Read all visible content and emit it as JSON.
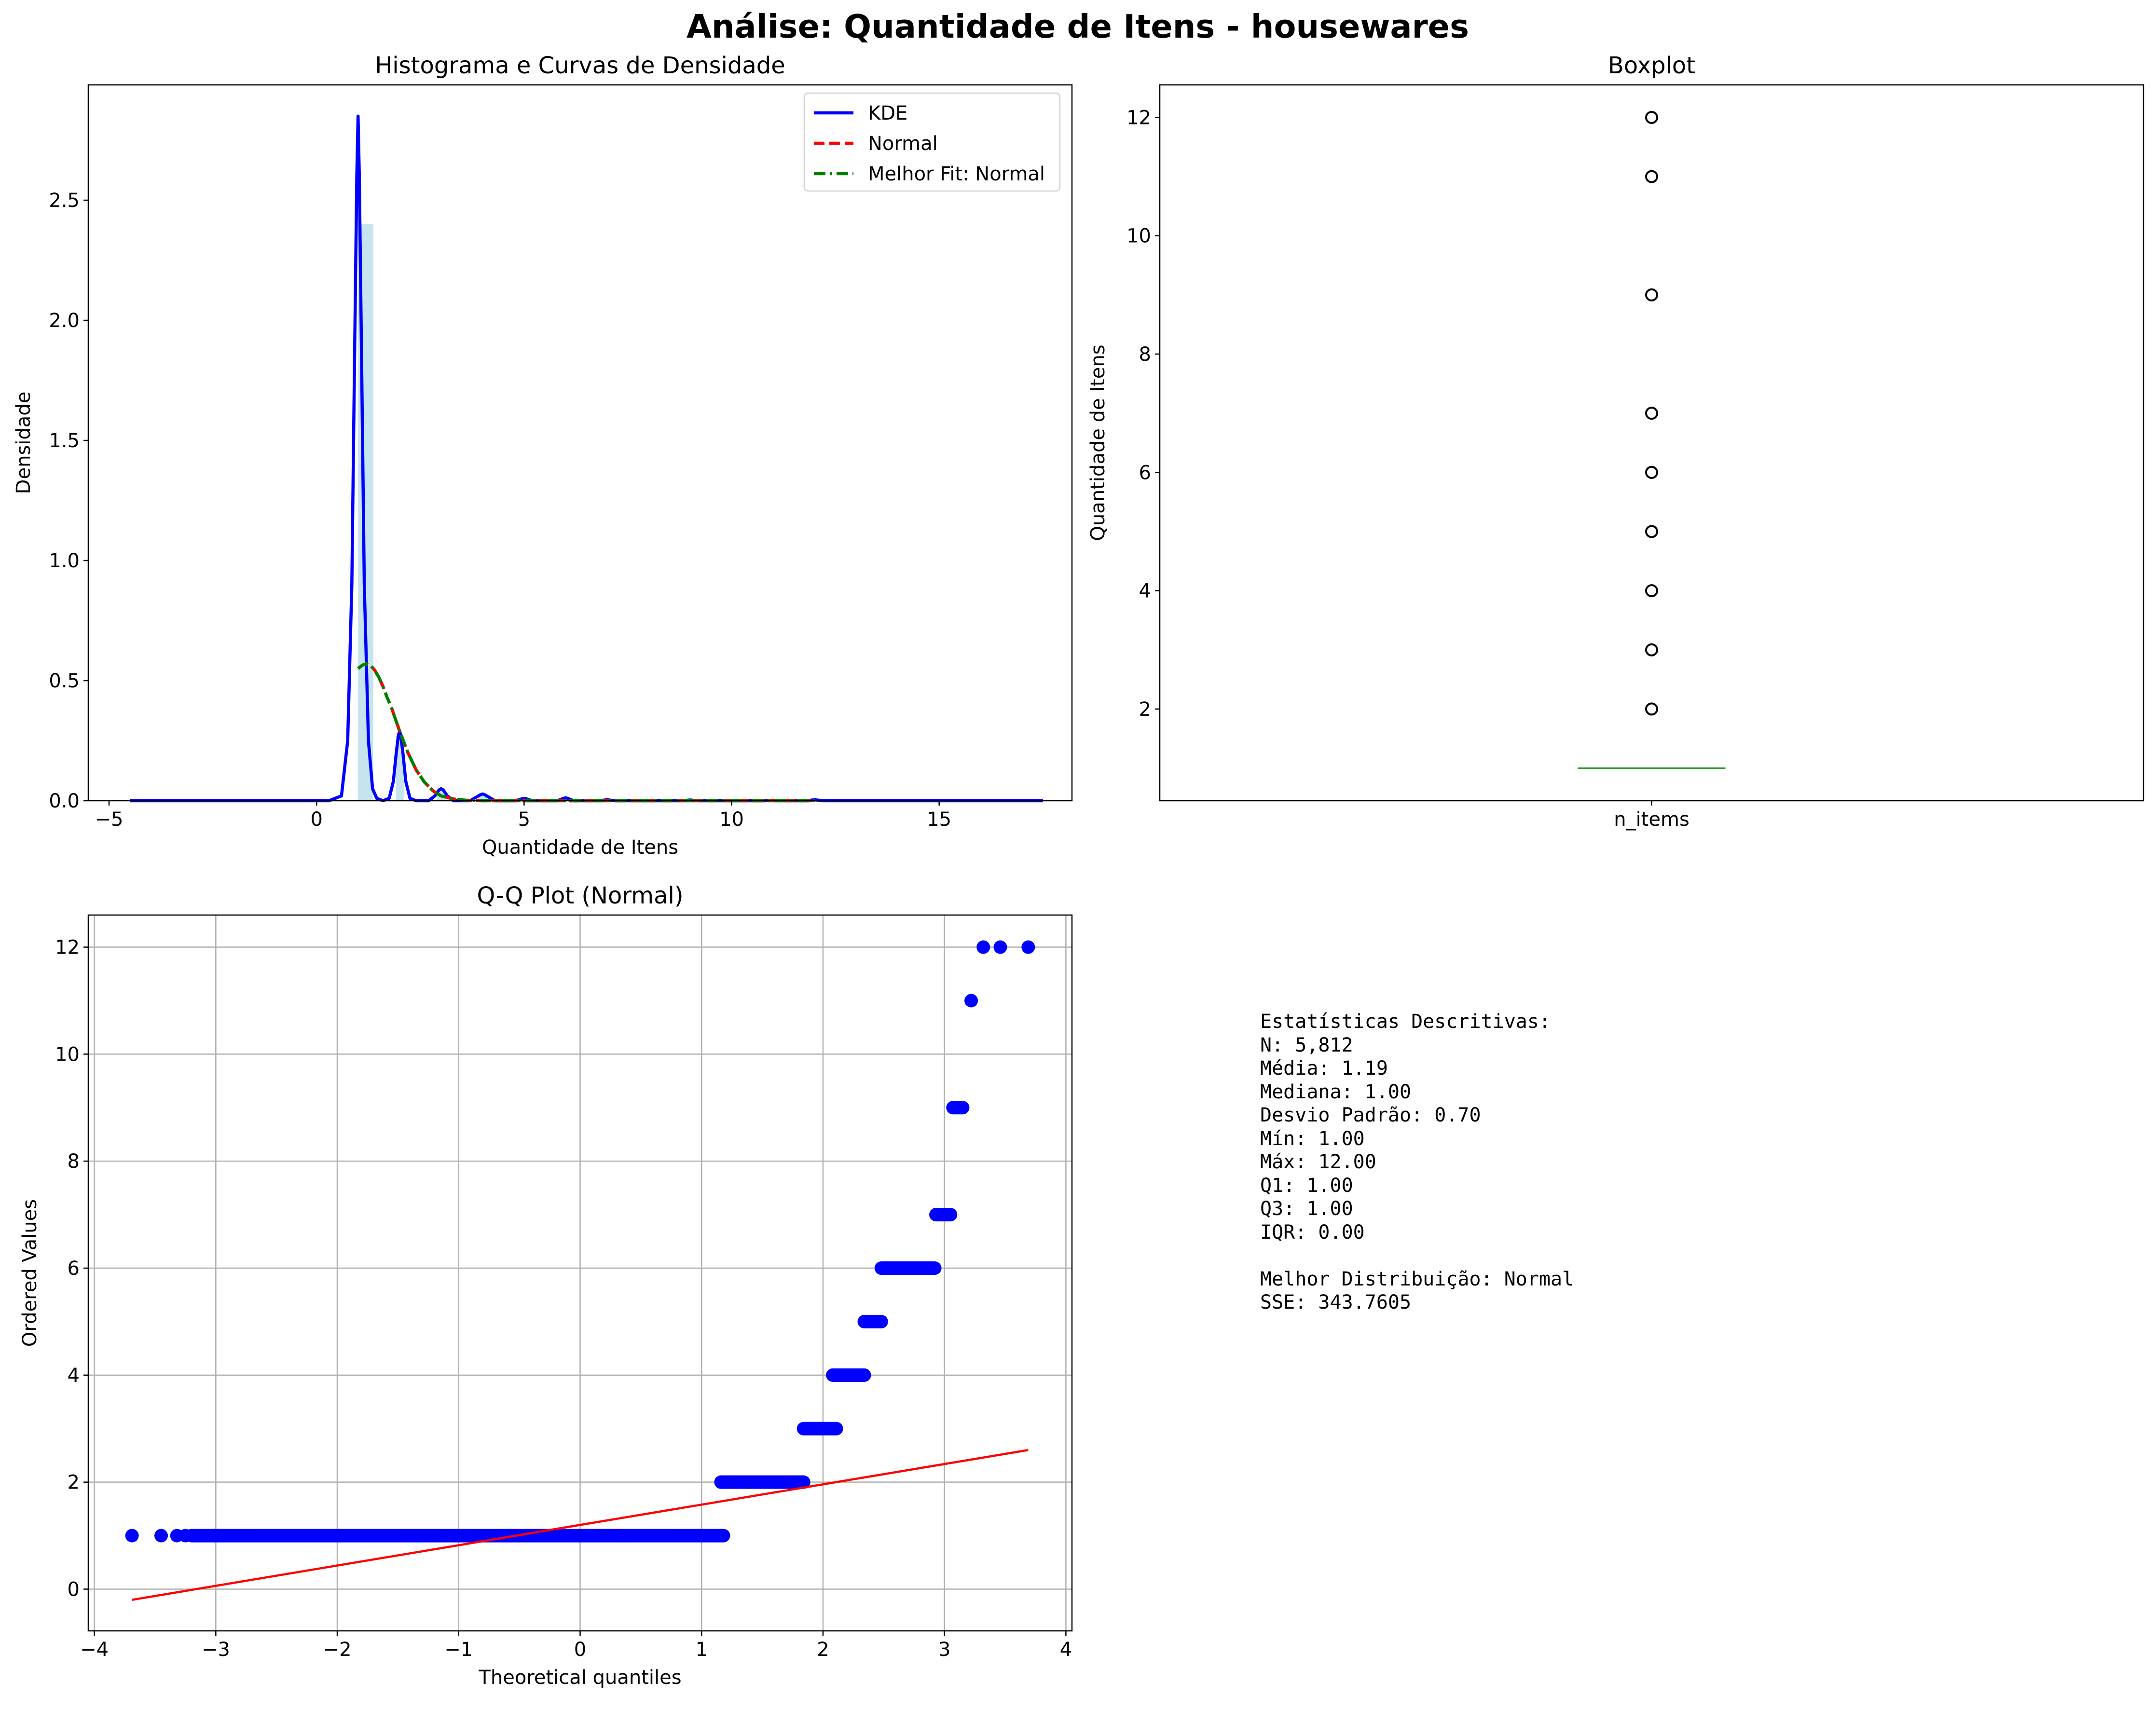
{
  "figure": {
    "suptitle": "Análise: Quantidade de Itens - housewares"
  },
  "chart_data": [
    {
      "type": "histogram+line",
      "title": "Histograma e Curvas de Densidade",
      "xlabel": "Quantidade de Itens",
      "ylabel": "Densidade",
      "xlim": [
        -5.5,
        18.2
      ],
      "ylim": [
        0,
        2.98
      ],
      "xticks": [
        -5,
        0,
        5,
        10,
        15
      ],
      "yticks": [
        0.0,
        0.5,
        1.0,
        1.5,
        2.0,
        2.5
      ],
      "xtick_labels": [
        "−5",
        "0",
        "5",
        "10",
        "15"
      ],
      "ytick_labels": [
        "0.0",
        "0.5",
        "1.0",
        "1.5",
        "2.0",
        "2.5"
      ],
      "grid": false,
      "legend_position": "upper-right",
      "histogram": {
        "color": "#add8e6",
        "bins": [
          {
            "x0": 1.0,
            "x1": 1.367,
            "density": 2.4
          },
          {
            "x0": 1.917,
            "x1": 2.1,
            "density": 0.27
          },
          {
            "x0": 2.9,
            "x1": 3.1,
            "density": 0.04
          },
          {
            "x0": 3.9,
            "x1": 4.1,
            "density": 0.02
          }
        ]
      },
      "series": [
        {
          "name": "KDE",
          "color": "#0000ff",
          "style": "solid",
          "x": [
            -4.5,
            -0.2,
            0.3,
            0.6,
            0.75,
            0.85,
            0.92,
            0.97,
            1.0,
            1.03,
            1.08,
            1.15,
            1.25,
            1.35,
            1.45,
            1.6,
            1.75,
            1.85,
            1.92,
            1.97,
            2.0,
            2.03,
            2.08,
            2.15,
            2.25,
            2.4,
            2.7,
            2.85,
            2.95,
            3.0,
            3.05,
            3.15,
            3.3,
            3.7,
            3.85,
            3.95,
            4.0,
            4.05,
            4.15,
            4.3,
            4.8,
            4.95,
            5.0,
            5.05,
            5.2,
            5.8,
            5.95,
            6.0,
            6.05,
            6.2,
            6.8,
            7.0,
            7.2,
            8.8,
            9.0,
            9.2,
            10.8,
            11.0,
            11.2,
            11.8,
            12.0,
            12.2,
            17.5
          ],
          "y": [
            0.0,
            0.0,
            0.0,
            0.02,
            0.25,
            0.9,
            1.9,
            2.6,
            2.85,
            2.6,
            1.9,
            0.9,
            0.25,
            0.05,
            0.01,
            0.0,
            0.01,
            0.08,
            0.2,
            0.27,
            0.29,
            0.27,
            0.2,
            0.08,
            0.01,
            0.0,
            0.0,
            0.02,
            0.045,
            0.05,
            0.045,
            0.02,
            0.0,
            0.0,
            0.015,
            0.025,
            0.028,
            0.025,
            0.015,
            0.0,
            0.0,
            0.008,
            0.01,
            0.008,
            0.0,
            0.0,
            0.01,
            0.012,
            0.01,
            0.0,
            0.0,
            0.004,
            0.0,
            0.0,
            0.003,
            0.0,
            0.0,
            0.002,
            0.0,
            0.0,
            0.004,
            0.0,
            0.0
          ]
        },
        {
          "name": "Normal",
          "color": "#ff0000",
          "style": "dashed",
          "x": [
            1.0,
            1.1,
            1.19,
            1.3,
            1.4,
            1.5,
            1.6,
            1.7,
            1.8,
            1.9,
            2.0,
            2.2,
            2.4,
            2.6,
            2.8,
            3.0,
            3.3,
            3.6,
            4.0,
            4.5,
            5.0,
            6.0,
            8.0,
            10.0,
            12.0
          ],
          "y": [
            0.55,
            0.564,
            0.57,
            0.563,
            0.544,
            0.514,
            0.476,
            0.43,
            0.39,
            0.34,
            0.29,
            0.2,
            0.128,
            0.077,
            0.042,
            0.02,
            0.007,
            0.002,
            0.0,
            0.0,
            0.0,
            0.0,
            0.0,
            0.0,
            0.0
          ]
        },
        {
          "name": "Melhor Fit: Normal",
          "color": "#008000",
          "style": "dashdot",
          "x": [
            1.0,
            1.1,
            1.19,
            1.3,
            1.4,
            1.5,
            1.6,
            1.7,
            1.8,
            1.9,
            2.0,
            2.2,
            2.4,
            2.6,
            2.8,
            3.0,
            3.3,
            3.6,
            4.0,
            4.5,
            5.0,
            6.0,
            8.0,
            10.0,
            12.0
          ],
          "y": [
            0.55,
            0.564,
            0.57,
            0.563,
            0.544,
            0.514,
            0.476,
            0.43,
            0.39,
            0.34,
            0.29,
            0.2,
            0.128,
            0.077,
            0.042,
            0.02,
            0.007,
            0.002,
            0.0,
            0.0,
            0.0,
            0.0,
            0.0,
            0.0,
            0.0
          ]
        }
      ]
    },
    {
      "type": "boxplot",
      "title": "Boxplot",
      "xlabel": "",
      "ylabel": "Quantidade de Itens",
      "ylim": [
        0.45,
        12.55
      ],
      "yticks": [
        2,
        4,
        6,
        8,
        10,
        12
      ],
      "ytick_labels": [
        "2",
        "4",
        "6",
        "8",
        "10",
        "12"
      ],
      "categories": [
        "n_items"
      ],
      "grid": false,
      "box": {
        "median": 1,
        "q1": 1,
        "q3": 1,
        "whisker_low": 1,
        "whisker_high": 1,
        "median_color": "#2ca02c"
      },
      "outliers": [
        2,
        3,
        4,
        5,
        6,
        7,
        9,
        11,
        12
      ]
    },
    {
      "type": "scatter",
      "title": "Q-Q Plot (Normal)",
      "xlabel": "Theoretical quantiles",
      "ylabel": "Ordered Values",
      "xlim": [
        -4.05,
        4.05
      ],
      "ylim": [
        -0.78,
        12.6
      ],
      "xticks": [
        -4,
        -3,
        -2,
        -1,
        0,
        1,
        2,
        3,
        4
      ],
      "yticks": [
        0,
        2,
        4,
        6,
        8,
        10,
        12
      ],
      "xtick_labels": [
        "−4",
        "−3",
        "−2",
        "−1",
        "0",
        "1",
        "2",
        "3",
        "4"
      ],
      "ytick_labels": [
        "0",
        "2",
        "4",
        "6",
        "8",
        "10",
        "12"
      ],
      "grid": true,
      "point_color": "#0000ff",
      "runs": [
        {
          "y": 1,
          "x0": -3.2,
          "x1": 1.18
        },
        {
          "y": 2,
          "x0": 1.16,
          "x1": 1.84
        },
        {
          "y": 3,
          "x0": 1.84,
          "x1": 2.11
        },
        {
          "y": 4,
          "x0": 2.08,
          "x1": 2.34
        },
        {
          "y": 5,
          "x0": 2.34,
          "x1": 2.48
        },
        {
          "y": 6,
          "x0": 2.48,
          "x1": 2.92
        },
        {
          "y": 7,
          "x0": 2.93,
          "x1": 3.05
        },
        {
          "y": 9,
          "x0": 3.07,
          "x1": 3.15
        }
      ],
      "points": [
        {
          "x": -3.69,
          "y": 1
        },
        {
          "x": -3.45,
          "y": 1
        },
        {
          "x": -3.32,
          "y": 1
        },
        {
          "x": -3.25,
          "y": 1
        },
        {
          "x": 3.22,
          "y": 11
        },
        {
          "x": 3.32,
          "y": 12
        },
        {
          "x": 3.46,
          "y": 12
        },
        {
          "x": 3.69,
          "y": 12
        }
      ],
      "fit_line": {
        "color": "#ff0000",
        "x": [
          -3.69,
          3.69
        ],
        "y": [
          -0.2,
          2.6
        ]
      }
    }
  ],
  "stats": {
    "lines": [
      "Estatísticas Descritivas:",
      "N: 5,812",
      "Média: 1.19",
      "Mediana: 1.00",
      "Desvio Padrão: 0.70",
      "Mín: 1.00",
      "Máx: 12.00",
      "Q1: 1.00",
      "Q3: 1.00",
      "IQR: 0.00",
      "",
      "Melhor Distribuição: Normal",
      "SSE: 343.7605"
    ]
  }
}
